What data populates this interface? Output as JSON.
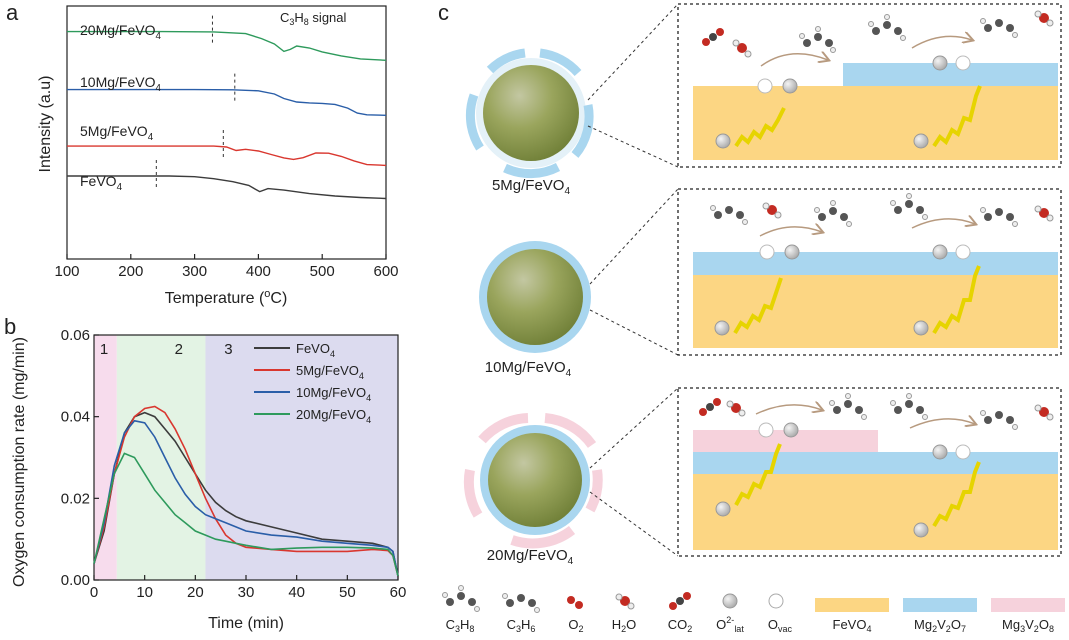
{
  "panel_labels": {
    "a": "a",
    "b": "b",
    "c": "c"
  },
  "chart_data": [
    {
      "type": "line",
      "panel": "a",
      "title": "",
      "annotation": "C3H8 signal",
      "annotation_parts": {
        "pre": "C",
        "sub1": "3",
        "mid": "H",
        "sub2": "8",
        "post": " signal"
      },
      "xlabel_pre": "Temperature (",
      "xlabel_sup": "o",
      "xlabel_post": "C)",
      "ylabel": "Intensity (a.u)",
      "xlim": [
        100,
        600
      ],
      "xticks": [
        "100",
        "200",
        "300",
        "400",
        "500",
        "600"
      ],
      "yticks": [],
      "series": [
        {
          "name": "FeVO4",
          "label_main": "FeVO",
          "label_sub": "4",
          "color": "#3c3c3c",
          "offset": 0,
          "marker_x": 240,
          "x": [
            100,
            200,
            260,
            300,
            330,
            360,
            385,
            395,
            402,
            415,
            440,
            480,
            520,
            560,
            600
          ],
          "y": [
            0.93,
            0.93,
            0.93,
            0.9,
            0.82,
            0.7,
            0.55,
            0.4,
            0.3,
            0.42,
            0.36,
            0.22,
            0.12,
            0.06,
            0.02
          ]
        },
        {
          "name": "5Mg/FeVO4",
          "label_main": "5Mg/FeVO",
          "label_sub": "4",
          "color": "#d9372f",
          "offset": 1,
          "marker_x": 345,
          "x": [
            100,
            250,
            330,
            350,
            365,
            380,
            400,
            420,
            440,
            455,
            470,
            490,
            510,
            530,
            550,
            570,
            600
          ],
          "y": [
            0.2,
            0.2,
            0.2,
            0.16,
            0.02,
            0.07,
            0.0,
            -0.14,
            -0.28,
            -0.34,
            -0.27,
            -0.08,
            -0.09,
            -0.22,
            -0.4,
            -0.55,
            -0.58
          ]
        },
        {
          "name": "10Mg/FeVO4",
          "label_main": "10Mg/FeVO",
          "label_sub": "4",
          "color": "#2a5ea8",
          "offset": 2,
          "marker_x": 363,
          "x": [
            100,
            200,
            300,
            360,
            400,
            425,
            440,
            460,
            480,
            500,
            520,
            540,
            555,
            570,
            600
          ],
          "y": [
            0.3,
            0.3,
            0.3,
            0.29,
            0.25,
            0.12,
            -0.06,
            -0.2,
            -0.24,
            -0.26,
            -0.3,
            -0.45,
            -0.65,
            -0.72,
            -0.74
          ]
        },
        {
          "name": "20Mg/FeVO4",
          "label_main": "20Mg/FeVO",
          "label_sub": "4",
          "color": "#2e9a5c",
          "offset": 3,
          "marker_x": 328,
          "x": [
            100,
            250,
            330,
            380,
            405,
            425,
            440,
            450,
            460,
            480,
            500,
            530,
            560,
            600
          ],
          "y": [
            0.5,
            0.5,
            0.49,
            0.42,
            0.22,
            0.0,
            -0.3,
            -0.22,
            -0.08,
            -0.16,
            -0.32,
            -0.48,
            -0.6,
            -0.66
          ]
        }
      ]
    },
    {
      "type": "line",
      "panel": "b",
      "xlabel": "Time (min)",
      "ylabel": "Oxygen consumption rate (mg/min)",
      "xlim": [
        0,
        60
      ],
      "ylim": [
        0,
        0.06
      ],
      "xticks": [
        "0",
        "10",
        "20",
        "30",
        "40",
        "50",
        "60"
      ],
      "yticks": [
        "0.00",
        "0.02",
        "0.04",
        "0.06"
      ],
      "regions": [
        {
          "label": "1",
          "from": 0,
          "to": 4.5,
          "color": "#f7dced"
        },
        {
          "label": "2",
          "from": 4.5,
          "to": 22,
          "color": "#e3f3e4"
        },
        {
          "label": "3",
          "from": 22,
          "to": 60,
          "color": "#dcdbef"
        }
      ],
      "series": [
        {
          "name": "FeVO4",
          "label_main": "FeVO",
          "label_sub": "4",
          "color": "#3c3c3c",
          "x": [
            0,
            2,
            4,
            6,
            8,
            10,
            12,
            14,
            16,
            18,
            20,
            22,
            24,
            26,
            28,
            30,
            35,
            40,
            45,
            50,
            55,
            58,
            59,
            60
          ],
          "y": [
            0.004,
            0.012,
            0.026,
            0.036,
            0.04,
            0.041,
            0.04,
            0.037,
            0.034,
            0.03,
            0.026,
            0.022,
            0.019,
            0.017,
            0.0155,
            0.0145,
            0.013,
            0.0115,
            0.01,
            0.0095,
            0.009,
            0.008,
            0.007,
            0.001
          ]
        },
        {
          "name": "5Mg/FeVO4",
          "label_main": "5Mg/FeVO",
          "label_sub": "4",
          "color": "#d9372f",
          "x": [
            0,
            2,
            4,
            6,
            8,
            10,
            12,
            14,
            16,
            18,
            20,
            22,
            24,
            26,
            28,
            30,
            35,
            40,
            45,
            50,
            55,
            58,
            59,
            60
          ],
          "y": [
            0.004,
            0.013,
            0.026,
            0.035,
            0.04,
            0.042,
            0.0425,
            0.041,
            0.037,
            0.032,
            0.026,
            0.02,
            0.015,
            0.011,
            0.009,
            0.008,
            0.0075,
            0.007,
            0.007,
            0.007,
            0.0075,
            0.0072,
            0.006,
            0.001
          ]
        },
        {
          "name": "10Mg/FeVO4",
          "label_main": "10Mg/FeVO",
          "label_sub": "4",
          "color": "#2a5ea8",
          "x": [
            0,
            2,
            4,
            6,
            8,
            10,
            12,
            14,
            16,
            18,
            20,
            22,
            24,
            26,
            28,
            30,
            35,
            40,
            45,
            50,
            55,
            58,
            59,
            60
          ],
          "y": [
            0.004,
            0.014,
            0.028,
            0.036,
            0.039,
            0.0385,
            0.035,
            0.03,
            0.025,
            0.021,
            0.018,
            0.016,
            0.015,
            0.014,
            0.013,
            0.012,
            0.011,
            0.0105,
            0.0095,
            0.009,
            0.0085,
            0.008,
            0.007,
            0.001
          ]
        },
        {
          "name": "20Mg/FeVO4",
          "label_main": "20Mg/FeVO",
          "label_sub": "4",
          "color": "#2e9a5c",
          "x": [
            0,
            2,
            4,
            6,
            8,
            10,
            12,
            14,
            16,
            18,
            20,
            22,
            24,
            26,
            28,
            30,
            35,
            40,
            45,
            50,
            55,
            58,
            59,
            60
          ],
          "y": [
            0.004,
            0.015,
            0.026,
            0.031,
            0.03,
            0.026,
            0.022,
            0.019,
            0.016,
            0.014,
            0.012,
            0.011,
            0.01,
            0.0095,
            0.009,
            0.0085,
            0.0075,
            0.0078,
            0.008,
            0.008,
            0.0078,
            0.0075,
            0.006,
            0.001
          ]
        }
      ]
    }
  ],
  "panel_c": {
    "particles": [
      {
        "label_main": "5Mg/FeVO",
        "label_sub": "4",
        "shell": "segmented-blue"
      },
      {
        "label_main": "10Mg/FeVO",
        "label_sub": "4",
        "shell": "full-blue"
      },
      {
        "label_main": "20Mg/FeVO",
        "label_sub": "4",
        "shell": "blue-and-pink"
      }
    ],
    "colors": {
      "fevo4": "#fcd683",
      "mg2v2o7": "#a9d6ef",
      "mg3v2o8": "#f6d2dc",
      "arrow": "#f5ea30"
    },
    "legend": [
      {
        "key": "C3H8",
        "icon": "propane-molecule-icon",
        "parts": [
          "C",
          "3",
          "H",
          "8"
        ]
      },
      {
        "key": "C3H6",
        "icon": "propene-molecule-icon",
        "parts": [
          "C",
          "3",
          "H",
          "6"
        ]
      },
      {
        "key": "O2",
        "icon": "oxygen-molecule-icon",
        "parts": [
          "O",
          "2"
        ]
      },
      {
        "key": "H2O",
        "icon": "water-molecule-icon",
        "parts": [
          "H",
          "2",
          "O"
        ]
      },
      {
        "key": "CO2",
        "icon": "co2-molecule-icon",
        "parts": [
          "CO",
          "2"
        ]
      },
      {
        "key": "O2-lat",
        "icon": "lattice-oxygen-icon",
        "base": "O",
        "sup": "2-",
        "sub": "lat"
      },
      {
        "key": "Ovac",
        "icon": "oxygen-vacancy-icon",
        "base": "O",
        "sub": "vac"
      },
      {
        "key": "FeVO4",
        "label_main": "FeVO",
        "label_sub": "4",
        "swatch": "#fcd683"
      },
      {
        "key": "Mg2V2O7",
        "parts": [
          "Mg",
          "2",
          "V",
          "2",
          "O",
          "7"
        ],
        "swatch": "#a9d6ef"
      },
      {
        "key": "Mg3V2O8",
        "parts": [
          "Mg",
          "3",
          "V",
          "2",
          "O",
          "8"
        ],
        "swatch": "#f6d2dc"
      }
    ]
  }
}
